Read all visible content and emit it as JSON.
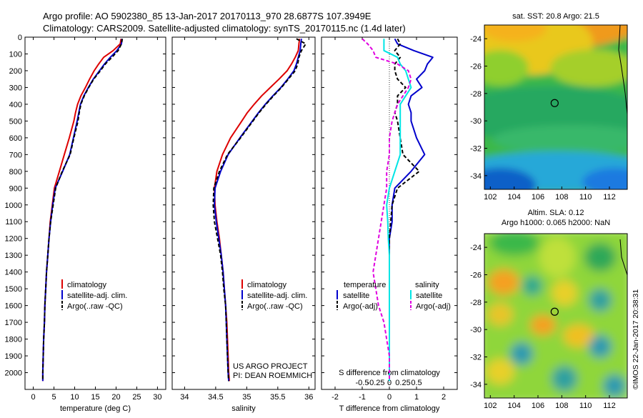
{
  "title": {
    "line1": "Argo profile: AO 5902380_85 13-Jan-2017 20170113_970 28.6877S 107.3949E",
    "line2": "Climatology: CARS2009. Satellite-adjusted climatology: synTS_20170115.nc (1.4d later)"
  },
  "colors": {
    "climatology": "#dd0000",
    "satellite": "#0000cc",
    "argo": "#000000",
    "salinity_satellite": "#00e5e5",
    "salinity_argo": "#e000e0"
  },
  "chart_data": [
    {
      "id": "temperature",
      "type": "line",
      "xlabel": "temperature (deg C)",
      "xlim": [
        -2,
        32
      ],
      "xticks": [
        0,
        5,
        10,
        15,
        20,
        25,
        30
      ],
      "ylim": [
        2100,
        0
      ],
      "yticks": [
        0,
        100,
        200,
        300,
        400,
        500,
        600,
        700,
        800,
        900,
        1000,
        1100,
        1200,
        1300,
        1400,
        1500,
        1600,
        1700,
        1800,
        1900,
        2000
      ],
      "y": [
        10,
        40,
        80,
        120,
        160,
        200,
        250,
        300,
        350,
        400,
        450,
        500,
        600,
        700,
        800,
        900,
        1000,
        1100,
        1200,
        1300,
        1400,
        1500,
        1600,
        1700,
        1800,
        1900,
        2000,
        2050
      ],
      "series": [
        {
          "name": "climatology",
          "style": "solid",
          "values": [
            21.2,
            21.0,
            19.3,
            17.0,
            15.8,
            14.7,
            13.6,
            12.6,
            11.5,
            10.7,
            10.2,
            9.8,
            8.7,
            7.5,
            6.3,
            5.1,
            4.6,
            4.1,
            3.8,
            3.5,
            3.2,
            3.0,
            2.8,
            2.7,
            2.5,
            2.4,
            2.3,
            2.3
          ]
        },
        {
          "name": "satellite-adj. clim.",
          "style": "solid",
          "values": [
            21.4,
            21.3,
            20.2,
            18.6,
            17.2,
            16.0,
            14.5,
            13.3,
            12.2,
            11.4,
            11.0,
            10.6,
            9.7,
            8.8,
            7.1,
            5.3,
            4.7,
            4.2,
            3.8,
            3.5,
            3.2,
            3.0,
            2.8,
            2.7,
            2.5,
            2.4,
            2.3,
            2.3
          ]
        },
        {
          "name": "Argo(..raw -QC)",
          "style": "dashed",
          "values": [
            21.5,
            21.3,
            20.5,
            19.0,
            17.4,
            16.2,
            14.6,
            13.4,
            12.3,
            11.5,
            11.1,
            10.8,
            9.8,
            8.9,
            7.0,
            5.4,
            4.8,
            4.2,
            3.8,
            3.5,
            3.2,
            3.0,
            2.8,
            2.7,
            2.5,
            2.4,
            2.3,
            2.3
          ]
        }
      ]
    },
    {
      "id": "salinity",
      "type": "line",
      "xlabel": "salinity",
      "xlim": [
        33.8,
        36.1
      ],
      "xticks": [
        34,
        34.5,
        35,
        35.5,
        36
      ],
      "ylim": [
        2100,
        0
      ],
      "y": [
        10,
        40,
        80,
        120,
        160,
        200,
        250,
        300,
        350,
        400,
        450,
        500,
        600,
        700,
        800,
        900,
        1000,
        1100,
        1200,
        1300,
        1400,
        1500,
        1600,
        1700,
        1800,
        1900,
        2000,
        2050
      ],
      "series": [
        {
          "name": "climatology",
          "style": "solid",
          "values": [
            35.85,
            35.84,
            35.83,
            35.78,
            35.72,
            35.65,
            35.52,
            35.38,
            35.24,
            35.12,
            35.01,
            34.92,
            34.74,
            34.61,
            34.52,
            34.48,
            34.49,
            34.52,
            34.56,
            34.59,
            34.62,
            34.64,
            34.66,
            34.68,
            34.69,
            34.7,
            34.71,
            34.72
          ]
        },
        {
          "name": "satellite-adj. clim.",
          "style": "solid",
          "values": [
            35.88,
            35.87,
            35.86,
            35.83,
            35.8,
            35.76,
            35.66,
            35.55,
            35.42,
            35.3,
            35.19,
            35.09,
            34.89,
            34.7,
            34.58,
            34.49,
            34.48,
            34.51,
            34.55,
            34.59,
            34.62,
            34.64,
            34.66,
            34.67,
            34.68,
            34.69,
            34.7,
            34.71
          ]
        },
        {
          "name": "Argo(..raw -QC)",
          "style": "dashed",
          "values": [
            35.8,
            35.95,
            35.88,
            35.84,
            35.82,
            35.78,
            35.67,
            35.56,
            35.43,
            35.31,
            35.2,
            35.1,
            34.9,
            34.69,
            34.56,
            34.47,
            34.46,
            34.48,
            34.53,
            34.58,
            34.61,
            34.63,
            34.66,
            34.67,
            34.68,
            34.69,
            34.7,
            34.71
          ]
        }
      ]
    },
    {
      "id": "difference",
      "type": "line",
      "xlabel": "T difference from climatology",
      "top_label": "S difference from climatology",
      "xlim": [
        -2.5,
        2.5
      ],
      "xticks": [
        -2,
        -1,
        0,
        1,
        2
      ],
      "xticklabels": [
        "-2",
        "-1",
        "0",
        "1",
        "2"
      ],
      "top_ticks": [
        -0.5,
        -0.25,
        0,
        0.25,
        0.5
      ],
      "top_ticklabels": [
        "-0.5",
        "-0.25",
        "0",
        "0.25",
        "0.5"
      ],
      "ylim": [
        2100,
        0
      ],
      "y": [
        10,
        40,
        80,
        120,
        160,
        200,
        250,
        300,
        350,
        400,
        450,
        500,
        600,
        700,
        800,
        900,
        1000,
        1100,
        1200,
        1300,
        1400,
        1500,
        1600,
        1700,
        1800,
        1900,
        2000,
        2050
      ],
      "series": [
        {
          "name": "satellite",
          "group": "temperature",
          "style": "solid",
          "values": [
            0.2,
            0.3,
            0.9,
            1.6,
            1.4,
            1.3,
            1.0,
            1.2,
            0.8,
            0.7,
            0.8,
            0.8,
            1.0,
            1.3,
            0.8,
            0.2,
            0.1,
            0.1,
            0.0,
            0.0,
            0.0,
            0.0,
            0.0,
            0.0,
            0.0,
            0.0,
            0.0,
            0.0
          ]
        },
        {
          "name": "Argo(-adj)",
          "group": "temperature",
          "style": "dashed",
          "values": [
            0.3,
            0.4,
            0.2,
            0.4,
            0.2,
            0.2,
            0.3,
            0.6,
            0.3,
            0.3,
            0.2,
            0.3,
            0.4,
            0.5,
            1.1,
            0.3,
            0.1,
            0.05,
            0.0,
            0.0,
            0.0,
            0.0,
            0.0,
            0.0,
            0.0,
            0.0,
            0.0,
            0.0
          ]
        },
        {
          "name": "satellite",
          "group": "salinity",
          "style": "solid",
          "values": [
            -0.1,
            -0.1,
            -0.1,
            0.15,
            0.2,
            0.3,
            0.35,
            0.4,
            0.3,
            0.2,
            0.2,
            0.2,
            0.2,
            0.2,
            0.1,
            0.0,
            -0.05,
            -0.03,
            -0.02,
            0.0,
            0.0,
            0.0,
            0.0,
            0.0,
            0.0,
            0.0,
            0.0,
            0.0
          ]
        },
        {
          "name": "Argo(-adj)",
          "group": "salinity",
          "style": "dashed",
          "values": [
            -0.5,
            -0.4,
            -0.3,
            -0.25,
            0.15,
            0.35,
            0.4,
            0.35,
            0.25,
            0.15,
            0.1,
            0.05,
            0.0,
            0.0,
            -0.05,
            -0.05,
            -0.1,
            -0.15,
            -0.2,
            -0.25,
            -0.3,
            -0.25,
            -0.2,
            -0.1,
            -0.05,
            0.0,
            0.0,
            0.0
          ]
        }
      ]
    }
  ],
  "panels": {
    "temperature": {
      "legend": [
        "climatology",
        "satellite-adj. clim.",
        "Argo(..raw -QC)"
      ]
    },
    "salinity": {
      "legend": [
        "climatology",
        "satellite-adj. clim.",
        "Argo(..raw -QC)"
      ],
      "credit1": "US ARGO PROJECT",
      "credit2": "PI: DEAN ROEMMICH"
    },
    "difference": {
      "legend_temperature_heading": "temperature",
      "legend_salinity_heading": "salinity",
      "legend_temperature": [
        "satellite",
        "Argo(-adj)"
      ],
      "legend_salinity": [
        "satellite",
        "Argo(-adj)"
      ]
    }
  },
  "maps": {
    "sst": {
      "title": "sat. SST: 20.8 Argo: 21.5",
      "xticks": [
        102,
        104,
        106,
        108,
        110,
        112
      ],
      "yticks": [
        -24,
        -26,
        -28,
        -30,
        -32,
        -34
      ],
      "xlim": [
        101.5,
        113.5
      ],
      "ylim": [
        -35,
        -23
      ],
      "marker": [
        107.4,
        -28.7
      ]
    },
    "sla": {
      "title1": "Altim. SLA: 0.12",
      "title2": "Argo h1000: 0.065 h2000: NaN",
      "xticks": [
        102,
        104,
        106,
        108,
        110,
        112
      ],
      "yticks": [
        -24,
        -26,
        -28,
        -30,
        -32,
        -34
      ],
      "xlim": [
        101.5,
        113.5
      ],
      "ylim": [
        -35,
        -23
      ],
      "marker": [
        107.4,
        -28.7
      ]
    }
  },
  "stamp": "©IMOS 22-Jan-2017 20:38:31"
}
